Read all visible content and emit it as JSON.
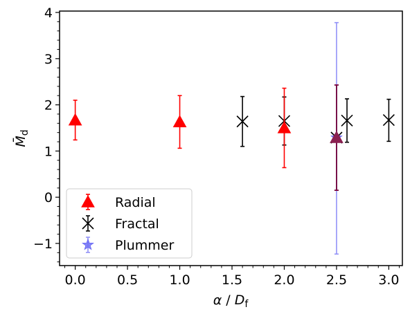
{
  "chart_data": {
    "type": "scatter",
    "title": "",
    "xlabel": "α / D_f",
    "ylabel": "M̄_d",
    "xlim": [
      -0.15,
      3.13
    ],
    "ylim": [
      -1.48,
      4.03
    ],
    "xticks": [
      0.0,
      0.5,
      1.0,
      1.5,
      2.0,
      2.5,
      3.0
    ],
    "xtick_labels": [
      "0.0",
      "0.5",
      "1.0",
      "1.5",
      "2.0",
      "2.5",
      "3.0"
    ],
    "yticks": [
      -1,
      0,
      1,
      2,
      3,
      4
    ],
    "ytick_labels": [
      "−1",
      "0",
      "1",
      "2",
      "3",
      "4"
    ],
    "grid": false,
    "legend_position": "lower-left",
    "series": [
      {
        "name": "Radial",
        "marker": "triangle-up",
        "color": "#ff0000",
        "points": [
          {
            "x": 0.0,
            "y": 1.67,
            "lo": 1.24,
            "hi": 2.1
          },
          {
            "x": 1.0,
            "y": 1.63,
            "lo": 1.06,
            "hi": 2.2
          },
          {
            "x": 2.0,
            "y": 1.5,
            "lo": 0.64,
            "hi": 2.36
          },
          {
            "x": 2.5,
            "y": 1.29,
            "lo": 0.15,
            "hi": 2.43
          }
        ]
      },
      {
        "name": "Fractal",
        "marker": "x",
        "color": "#000000",
        "points": [
          {
            "x": 1.6,
            "y": 1.64,
            "lo": 1.1,
            "hi": 2.18
          },
          {
            "x": 2.0,
            "y": 1.65,
            "lo": 1.13,
            "hi": 2.17
          },
          {
            "x": 2.5,
            "y": 1.29,
            "lo": 0.15,
            "hi": 2.43
          },
          {
            "x": 2.6,
            "y": 1.66,
            "lo": 1.19,
            "hi": 2.13
          },
          {
            "x": 3.0,
            "y": 1.67,
            "lo": 1.21,
            "hi": 2.12
          }
        ]
      },
      {
        "name": "Plummer",
        "marker": "star",
        "color": "#6e6ef5",
        "points": [
          {
            "x": 2.5,
            "y": 1.29,
            "lo": -1.23,
            "hi": 3.78
          }
        ]
      }
    ]
  }
}
